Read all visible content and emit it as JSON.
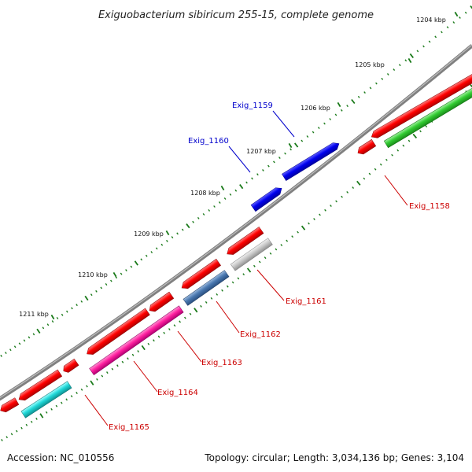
{
  "title": "Exiguobacterium sibiricum 255-15, complete genome",
  "footer": {
    "accession": "Accession: NC_010556",
    "summary": "Topology: circular; Length: 3,034,136 bp; Genes: 3,104"
  },
  "colors": {
    "forward_label": "#0000cc",
    "reverse_label": "#cc0000",
    "tick": "#1a7a1a",
    "backbone": "#808080"
  },
  "ticks": [
    "1204 kbp",
    "1205 kbp",
    "1206 kbp",
    "1207 kbp",
    "1208 kbp",
    "1209 kbp",
    "1210 kbp",
    "1211 kbp"
  ],
  "gene_labels": [
    {
      "text": "Exig_1159",
      "strand": "forward"
    },
    {
      "text": "Exig_1160",
      "strand": "forward"
    },
    {
      "text": "Exig_1158",
      "strand": "reverse"
    },
    {
      "text": "Exig_1161",
      "strand": "reverse"
    },
    {
      "text": "Exig_1162",
      "strand": "reverse"
    },
    {
      "text": "Exig_1163",
      "strand": "reverse"
    },
    {
      "text": "Exig_1164",
      "strand": "reverse"
    },
    {
      "text": "Exig_1165",
      "strand": "reverse"
    }
  ]
}
